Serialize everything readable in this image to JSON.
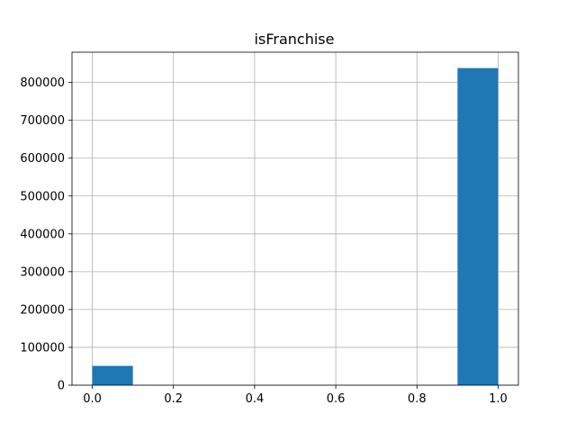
{
  "chart_data": {
    "type": "bar",
    "title": "isFranchise",
    "xlabel": "",
    "ylabel": "",
    "xlim": [
      -0.05,
      1.05
    ],
    "ylim": [
      0,
      880000
    ],
    "grid": true,
    "bar_color": "#1f77b4",
    "bins": [
      {
        "x0": 0.0,
        "x1": 0.1,
        "value": 51000
      },
      {
        "x0": 0.1,
        "x1": 0.2,
        "value": 0
      },
      {
        "x0": 0.2,
        "x1": 0.3,
        "value": 0
      },
      {
        "x0": 0.3,
        "x1": 0.4,
        "value": 0
      },
      {
        "x0": 0.4,
        "x1": 0.5,
        "value": 0
      },
      {
        "x0": 0.5,
        "x1": 0.6,
        "value": 0
      },
      {
        "x0": 0.6,
        "x1": 0.7,
        "value": 0
      },
      {
        "x0": 0.7,
        "x1": 0.8,
        "value": 0
      },
      {
        "x0": 0.8,
        "x1": 0.9,
        "value": 0
      },
      {
        "x0": 0.9,
        "x1": 1.0,
        "value": 838000
      }
    ],
    "x_ticks": [
      0.0,
      0.2,
      0.4,
      0.6,
      0.8,
      1.0
    ],
    "x_tick_labels": [
      "0.0",
      "0.2",
      "0.4",
      "0.6",
      "0.8",
      "1.0"
    ],
    "y_ticks": [
      0,
      100000,
      200000,
      300000,
      400000,
      500000,
      600000,
      700000,
      800000
    ],
    "y_tick_labels": [
      "0",
      "100000",
      "200000",
      "300000",
      "400000",
      "500000",
      "600000",
      "700000",
      "800000"
    ]
  }
}
